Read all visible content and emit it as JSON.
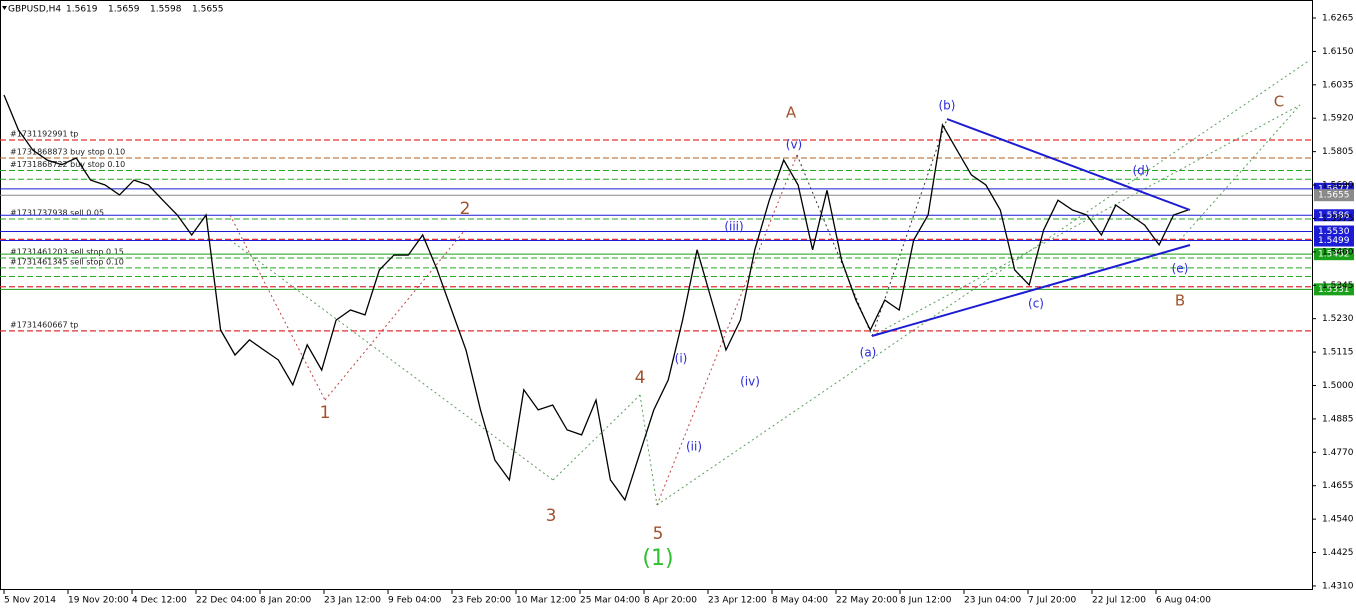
{
  "chart_data": {
    "type": "line",
    "title": "GBPUSD,H4",
    "quote": [
      1.5619,
      1.5659,
      1.5598,
      1.5655
    ],
    "ylim": [
      1.4296,
      1.6327
    ],
    "yticks": [
      1.6265,
      {
        "value": 1.615,
        "label": "1.6150"
      },
      1.6035,
      {
        "value": 1.592,
        "label": "1.5920"
      },
      1.5805,
      {
        "value": 1.569,
        "label": "1.5690"
      },
      1.5575,
      {
        "value": 1.546,
        "label": "1.5460"
      },
      1.5345,
      {
        "value": 1.523,
        "label": "1.5230"
      },
      1.5115,
      {
        "value": 1.5,
        "label": "1.5000"
      },
      1.4885,
      {
        "value": 1.477,
        "label": "1.4770"
      },
      1.4655,
      {
        "value": 1.454,
        "label": "1.4540"
      },
      1.4425,
      {
        "value": 1.431,
        "label": "1.4310"
      }
    ],
    "xticks": [
      "5 Nov 2014",
      "19 Nov 20:00",
      "4 Dec 12:00",
      "22 Dec 04:00",
      "8 Jan 20:00",
      "23 Jan 12:00",
      "9 Feb 04:00",
      "23 Feb 20:00",
      "10 Mar 12:00",
      "25 Mar 04:00",
      "8 Apr 20:00",
      "23 Apr 12:00",
      "8 May 04:00",
      "22 May 20:00",
      "8 Jun 12:00",
      "23 Jun 04:00",
      "7 Jul 20:00",
      "22 Jul 12:00",
      "6 Aug 04:00"
    ],
    "series": [
      {
        "color": "#000000",
        "values": [
          1.6,
          1.588,
          1.581,
          1.5776,
          1.576,
          1.5783,
          1.5707,
          1.569,
          1.5656,
          1.5707,
          1.569,
          1.5638,
          1.5587,
          1.5518,
          1.5587,
          1.5191,
          1.5105,
          1.5157,
          1.5122,
          1.5088,
          1.5002,
          1.514,
          1.5053,
          1.5225,
          1.526,
          1.5243,
          1.5398,
          1.5449,
          1.5449,
          1.5518,
          1.5398,
          1.526,
          1.5122,
          1.4916,
          1.4743,
          1.4675,
          1.4985,
          1.4916,
          1.4933,
          1.4847,
          1.483,
          1.495,
          1.4675,
          1.4606,
          1.4761,
          1.4916,
          1.5019,
          1.5225,
          1.5467,
          1.5294,
          1.5122,
          1.5225,
          1.5467,
          1.5638,
          1.5776,
          1.569,
          1.5467,
          1.5672,
          1.5432,
          1.5294,
          1.5191,
          1.5294,
          1.526,
          1.5501,
          1.5587,
          1.5897,
          1.581,
          1.5725,
          1.569,
          1.5604,
          1.5398,
          1.5346,
          1.5535,
          1.5638,
          1.5604,
          1.5587,
          1.5518,
          1.5621,
          1.5587,
          1.5552,
          1.5484,
          1.5587,
          1.5604
        ]
      }
    ],
    "price_levels": [
      {
        "value": 1.5677,
        "color": "#1c1cd4"
      },
      {
        "value": 1.5655,
        "color": "#8a8a8a"
      },
      {
        "value": 1.5586,
        "color": "#1c1cd4"
      },
      {
        "value": 1.553,
        "label": "1.5530",
        "color": "#1c1cd4"
      },
      {
        "value": 1.5499,
        "color": "#1c1cd4"
      },
      {
        "value": 1.5452,
        "color": "#1aa01a"
      },
      {
        "value": 1.5331,
        "color": "#1aa01a"
      }
    ],
    "order_lines": [
      {
        "value": 1.5845,
        "label": "#1731192991 tp",
        "color": "#e03030"
      },
      {
        "value": 1.5783,
        "label": "#1731868873 buy stop 0.10",
        "color": "#b06020"
      },
      {
        "value": 1.574,
        "label": "#1731868722 buy stop 0.10",
        "color": "#22aa22"
      },
      {
        "value": 1.571,
        "color": "#22aa22"
      },
      {
        "value": 1.5573,
        "label": "#1731737938 sell 0.05",
        "color": "#22aa22"
      },
      {
        "value": 1.5503,
        "color": "#e03030"
      },
      {
        "value": 1.5439,
        "label": "#1731461203 sell stop 0.15",
        "color": "#22aa22"
      },
      {
        "value": 1.5405,
        "label": "#1731461345 sell stop 0.10",
        "color": "#22aa22"
      },
      {
        "value": 1.5375,
        "color": "#22aa22"
      },
      {
        "value": 1.534,
        "color": "#e03030"
      },
      {
        "value": 1.5188,
        "label": "#1731460667 tp",
        "color": "#e03030"
      }
    ],
    "wave_labels": [
      "1",
      "2",
      "3",
      "4",
      "5",
      "(1)",
      "A",
      "B",
      "C",
      "(a)",
      "(b)",
      "(c)",
      "(d)",
      "(e)",
      "(i)",
      "(ii)",
      "(iii)",
      "(iv)",
      "(v)"
    ]
  }
}
